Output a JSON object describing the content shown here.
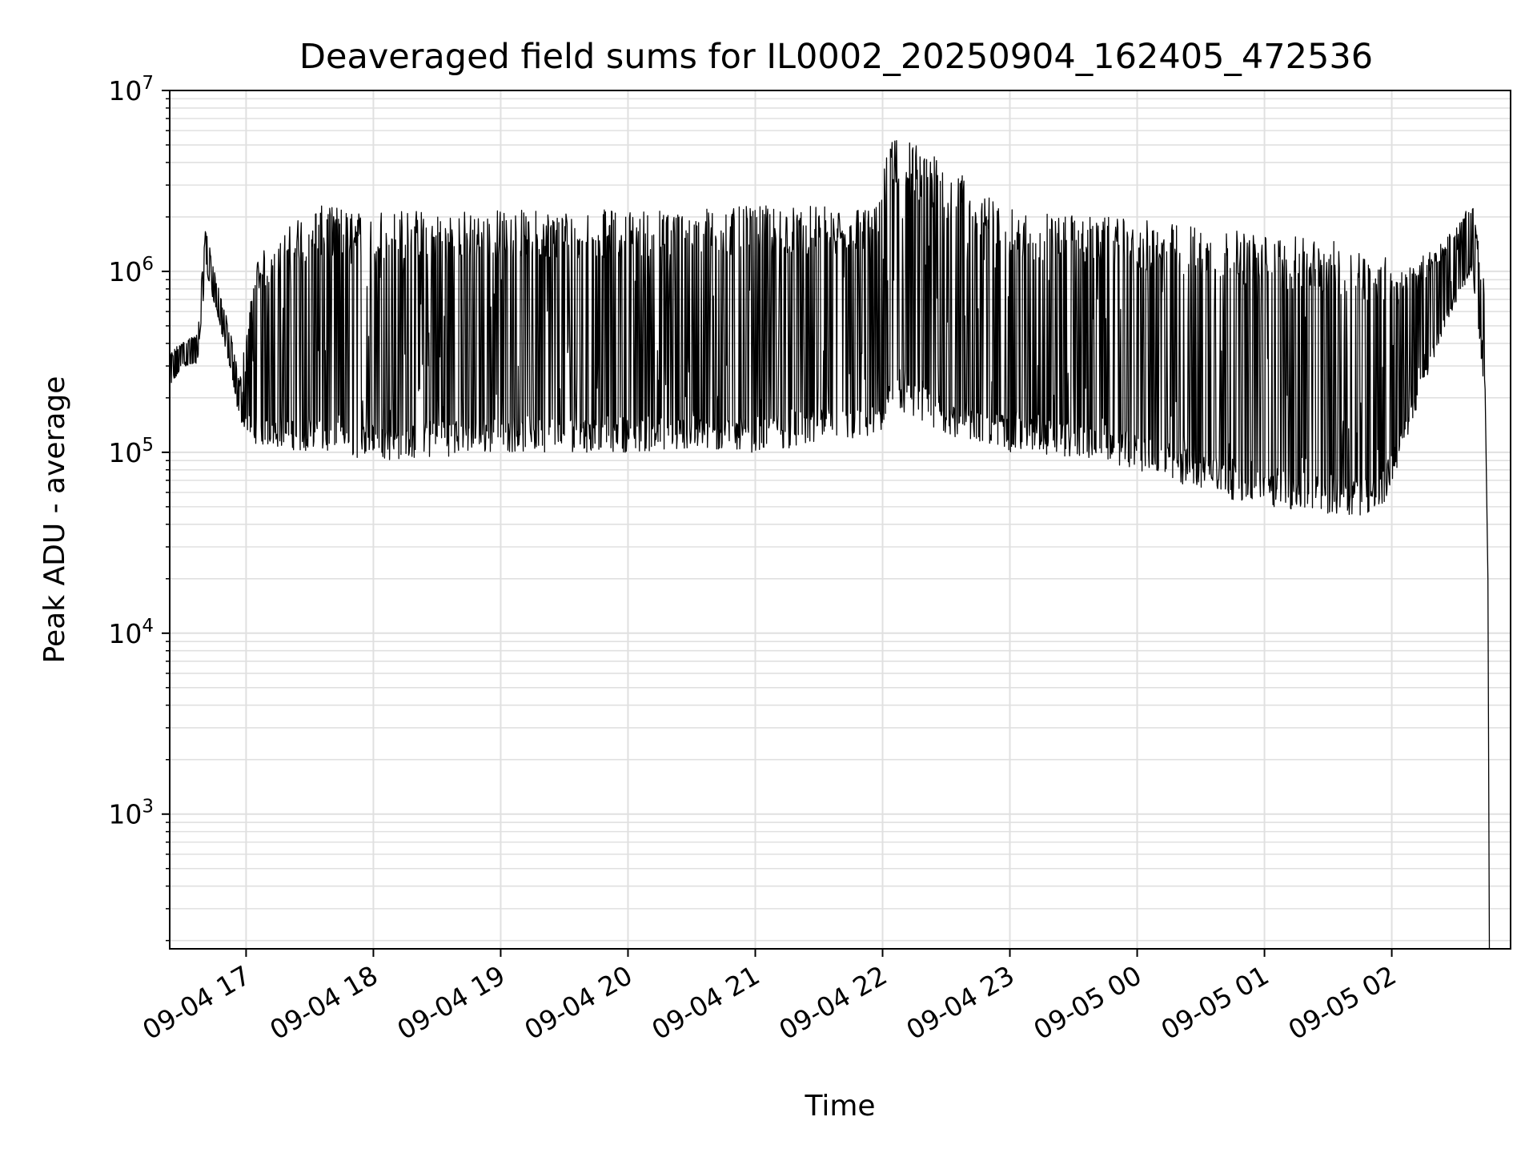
{
  "chart_data": {
    "type": "line",
    "title": "Deaveraged field sums for IL0002_20250904_162405_472536",
    "xlabel": "Time",
    "ylabel": "Peak ADU - average",
    "y_scale": "log",
    "ylim": [
      180,
      10000000
    ],
    "xlim": [
      "2025-09-04 16:24",
      "2025-09-05 02:56"
    ],
    "grid": true,
    "x_ticks": [
      "09-04 17",
      "09-04 18",
      "09-04 19",
      "09-04 20",
      "09-04 21",
      "09-04 22",
      "09-04 23",
      "09-05 00",
      "09-05 01",
      "09-05 02"
    ],
    "x_tick_times": [
      "2025-09-04 17:00",
      "2025-09-04 18:00",
      "2025-09-04 19:00",
      "2025-09-04 20:00",
      "2025-09-04 21:00",
      "2025-09-04 22:00",
      "2025-09-04 23:00",
      "2025-09-05 00:00",
      "2025-09-05 01:00",
      "2025-09-05 02:00"
    ],
    "y_ticks": [
      {
        "value": 1000,
        "base": "10",
        "exp": "3"
      },
      {
        "value": 10000,
        "base": "10",
        "exp": "4"
      },
      {
        "value": 100000,
        "base": "10",
        "exp": "5"
      },
      {
        "value": 1000000,
        "base": "10",
        "exp": "6"
      },
      {
        "value": 10000000,
        "base": "10",
        "exp": "7"
      }
    ],
    "line_color": "#000000",
    "grid_color": "#e0e0e0",
    "series": [
      {
        "values_description_x": [
          "2025-09-04 16:24",
          "2025-09-04 16:30",
          "2025-09-04 16:37",
          "2025-09-04 16:41",
          "2025-09-04 16:46",
          "2025-09-04 16:52",
          "2025-09-04 16:57",
          "2025-09-04 17:05",
          "2025-09-04 17:30",
          "2025-09-04 18:00",
          "2025-09-04 18:10",
          "2025-09-04 19:00",
          "2025-09-04 20:00",
          "2025-09-04 21:00",
          "2025-09-04 21:58",
          "2025-09-04 22:04",
          "2025-09-04 23:00",
          "2025-09-04 23:45",
          "2025-09-05 00:30",
          "2025-09-05 01:00",
          "2025-09-05 01:30",
          "2025-09-05 01:55",
          "2025-09-05 02:05",
          "2025-09-05 02:25",
          "2025-09-05 02:38",
          "2025-09-05 02:44",
          "2025-09-05 02:46"
        ],
        "x": [
          "2025-09-04 16:24",
          "2025-09-04 16:30",
          "2025-09-04 16:37",
          "2025-09-04 16:41",
          "2025-09-04 16:46",
          "2025-09-04 16:52",
          "2025-09-04 16:57",
          "2025-09-04 17:05",
          "2025-09-04 17:30",
          "2025-09-04 18:00",
          "2025-09-04 18:10",
          "2025-09-04 19:00",
          "2025-09-04 20:00",
          "2025-09-04 21:00",
          "2025-09-04 21:58",
          "2025-09-04 22:04",
          "2025-09-04 23:00",
          "2025-09-04 23:45",
          "2025-09-05 00:30",
          "2025-09-05 01:00",
          "2025-09-05 01:30",
          "2025-09-05 01:55",
          "2025-09-05 02:05",
          "2025-09-05 02:25",
          "2025-09-05 02:38",
          "2025-09-05 02:44",
          "2025-09-05 02:46"
        ],
        "low": [
          220000,
          300000,
          300000,
          1000000,
          600000,
          300000,
          150000,
          110000,
          100000,
          90000,
          90000,
          100000,
          100000,
          100000,
          120000,
          150000,
          100000,
          90000,
          60000,
          50000,
          45000,
          45000,
          100000,
          500000,
          1000000,
          200000,
          180
        ],
        "high": [
          350000,
          420000,
          450000,
          1800000,
          900000,
          500000,
          250000,
          1200000,
          2300000,
          2300000,
          2200000,
          2200000,
          2200000,
          2300000,
          2300000,
          6500000,
          2200000,
          2000000,
          1800000,
          1600000,
          1500000,
          1300000,
          1000000,
          1500000,
          2400000,
          800000,
          180
        ]
      }
    ]
  }
}
